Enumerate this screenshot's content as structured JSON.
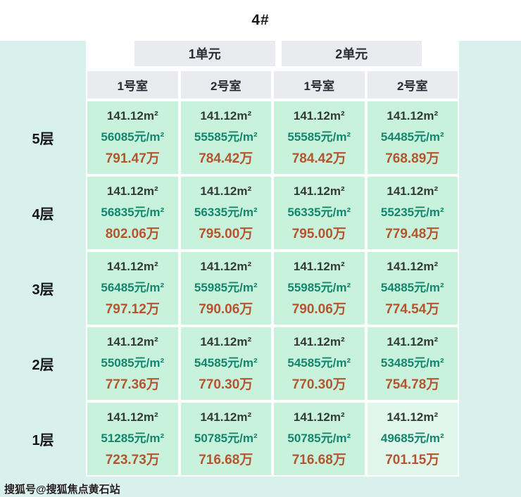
{
  "title": "4#",
  "watermark": "搜狐号@搜狐焦点黄石站",
  "colors": {
    "page_bg": "#d8f1ec",
    "header_bg": "#e9ebee",
    "cell_bg": "#c9f2dd",
    "cell_bg_light": "#e2f7ec",
    "area_color": "#333b36",
    "price_color": "#12876e",
    "total_color": "#b5552d"
  },
  "chart_data": {
    "type": "table",
    "title": "4#",
    "unit_headers": [
      "1单元",
      "2单元"
    ],
    "room_headers": [
      "1号室",
      "2号室",
      "1号室",
      "2号室"
    ],
    "row_labels": [
      "5层",
      "4层",
      "3层",
      "2层",
      "1层"
    ],
    "cell_fields": [
      "area",
      "price",
      "total"
    ],
    "floors": [
      {
        "label": "5层",
        "cells": [
          {
            "area": "141.12m²",
            "price": "56085元/m²",
            "total": "791.47万"
          },
          {
            "area": "141.12m²",
            "price": "55585元/m²",
            "total": "784.42万"
          },
          {
            "area": "141.12m²",
            "price": "55585元/m²",
            "total": "784.42万"
          },
          {
            "area": "141.12m²",
            "price": "54485元/m²",
            "total": "768.89万"
          }
        ]
      },
      {
        "label": "4层",
        "cells": [
          {
            "area": "141.12m²",
            "price": "56835元/m²",
            "total": "802.06万"
          },
          {
            "area": "141.12m²",
            "price": "56335元/m²",
            "total": "795.00万"
          },
          {
            "area": "141.12m²",
            "price": "56335元/m²",
            "total": "795.00万"
          },
          {
            "area": "141.12m²",
            "price": "55235元/m²",
            "total": "779.48万"
          }
        ]
      },
      {
        "label": "3层",
        "cells": [
          {
            "area": "141.12m²",
            "price": "56485元/m²",
            "total": "797.12万"
          },
          {
            "area": "141.12m²",
            "price": "55985元/m²",
            "total": "790.06万"
          },
          {
            "area": "141.12m²",
            "price": "55985元/m²",
            "total": "790.06万"
          },
          {
            "area": "141.12m²",
            "price": "54885元/m²",
            "total": "774.54万"
          }
        ]
      },
      {
        "label": "2层",
        "cells": [
          {
            "area": "141.12m²",
            "price": "55085元/m²",
            "total": "777.36万"
          },
          {
            "area": "141.12m²",
            "price": "54585元/m²",
            "total": "770.30万"
          },
          {
            "area": "141.12m²",
            "price": "54585元/m²",
            "total": "770.30万"
          },
          {
            "area": "141.12m²",
            "price": "53485元/m²",
            "total": "754.78万"
          }
        ]
      },
      {
        "label": "1层",
        "cells": [
          {
            "area": "141.12m²",
            "price": "51285元/m²",
            "total": "723.73万"
          },
          {
            "area": "141.12m²",
            "price": "50785元/m²",
            "total": "716.68万"
          },
          {
            "area": "141.12m²",
            "price": "50785元/m²",
            "total": "716.68万"
          },
          {
            "area": "141.12m²",
            "price": "49685元/m²",
            "total": "701.15万",
            "highlight": true
          }
        ]
      }
    ]
  }
}
